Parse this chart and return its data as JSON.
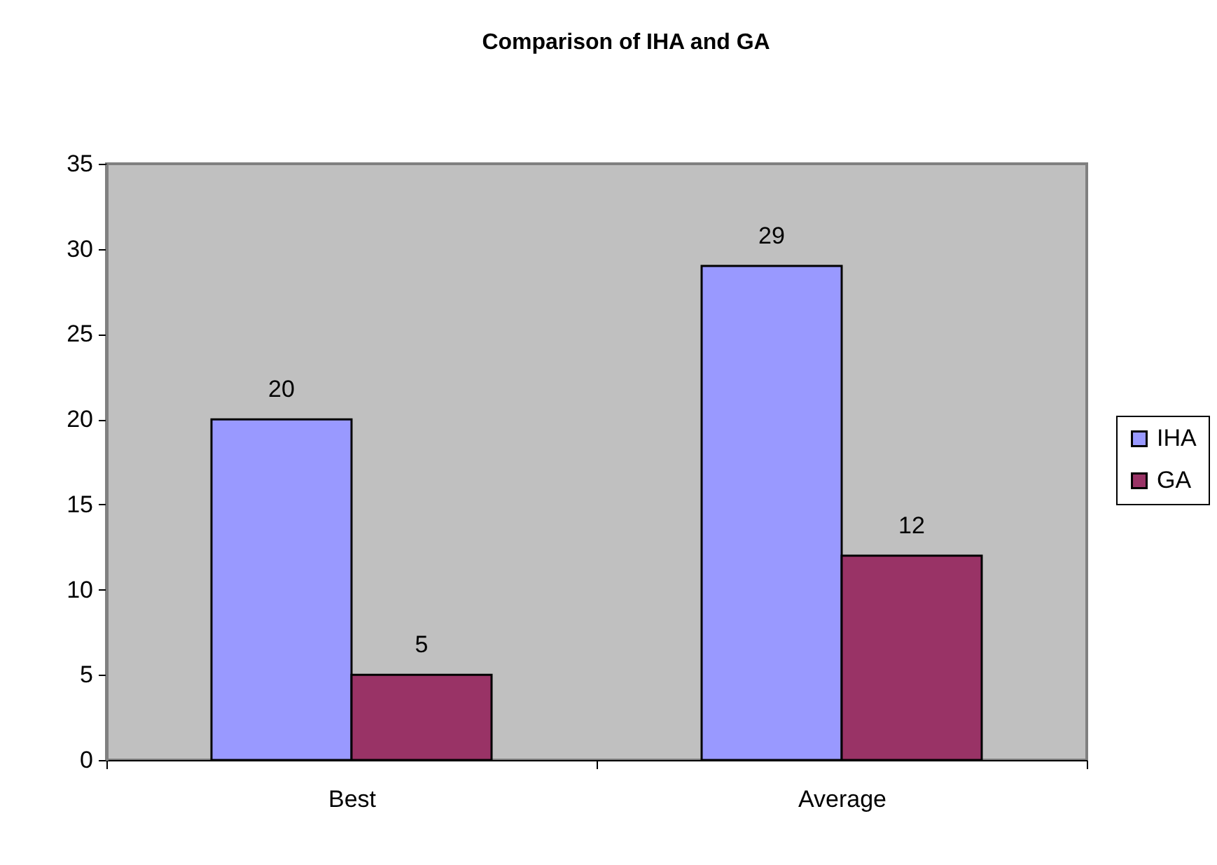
{
  "chart_data": {
    "type": "bar",
    "title": "Comparison of IHA and GA",
    "categories": [
      "Best",
      "Average"
    ],
    "series": [
      {
        "name": "IHA",
        "color": "#9999ff",
        "values": [
          20,
          29
        ]
      },
      {
        "name": "GA",
        "color": "#993366",
        "values": [
          5,
          12
        ]
      }
    ],
    "ylim": [
      0,
      35
    ],
    "yticks": [
      0,
      5,
      10,
      15,
      20,
      25,
      30,
      35
    ],
    "data_labels": true,
    "legend": "right"
  }
}
